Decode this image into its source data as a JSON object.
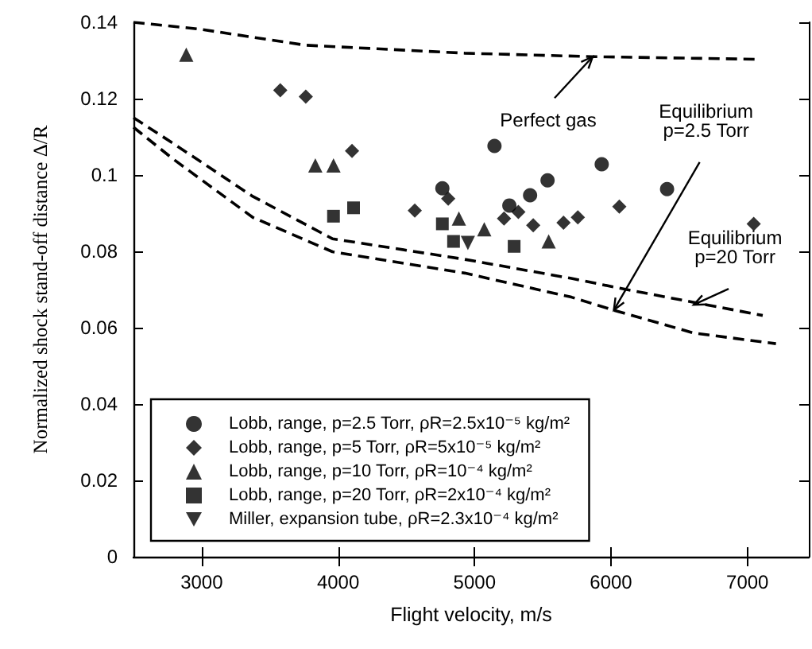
{
  "chart_data": {
    "type": "scatter",
    "xlabel": "Flight velocity, m/s",
    "ylabel": "Normalized shock stand-off distance Δ/R",
    "xlim": [
      2500,
      7450
    ],
    "xticks": [
      3000,
      4000,
      5000,
      6000,
      7000
    ],
    "ylim": [
      0,
      0.14
    ],
    "yticks": [
      0,
      0.02,
      0.04,
      0.06,
      0.08,
      0.1,
      0.12,
      0.14
    ],
    "grid": false,
    "legend": "bottom left",
    "series": [
      {
        "name": "Lobb, range, p=2.5 Torr, ρR=2.5x10⁻⁵ kg/m²",
        "color": "#000000",
        "marker": "circle",
        "x": [
          5146,
          4764,
          5255,
          5407,
          5535,
          5932,
          6411
        ],
        "values": [
          0.1076,
          0.0965,
          0.092,
          0.0947,
          0.0986,
          0.1028,
          0.0963
        ]
      },
      {
        "name": "Lobb, range, p=5 Torr, ρR=5x10⁻⁵ kg/m²",
        "color": "#000000",
        "marker": "diamond",
        "x": [
          3576,
          3763,
          4102,
          4562,
          4807,
          5216,
          5321,
          5430,
          5652,
          5757,
          6061,
          7046
        ],
        "values": [
          0.1222,
          0.1205,
          0.1063,
          0.0907,
          0.0938,
          0.0886,
          0.0903,
          0.0868,
          0.0875,
          0.0889,
          0.0917,
          0.0872
        ]
      },
      {
        "name": "Lobb, range, p=10 Torr, ρR=10⁻⁴ kg/m²",
        "color": "#000000",
        "marker": "triangle",
        "x": [
          2887,
          3833,
          3966,
          4885,
          5071,
          5543
        ],
        "values": [
          0.1315,
          0.1025,
          0.1025,
          0.0886,
          0.0858,
          0.0826
        ]
      },
      {
        "name": "Lobb, range, p=20 Torr, ρR=2x10⁻⁴ kg/m²",
        "color": "#000000",
        "marker": "square",
        "x": [
          3966,
          4113,
          4764,
          4846,
          5290
        ],
        "values": [
          0.0892,
          0.0914,
          0.0872,
          0.0826,
          0.0813
        ]
      },
      {
        "name": "Miller, expansion tube, ρR=2.3x10⁻⁴ kg/m²",
        "color": "#000000",
        "marker": "triangle-down",
        "x": [
          4951
        ],
        "values": [
          0.0822
        ]
      },
      {
        "type": "line",
        "color": "#000000",
        "line_style": "dashed",
        "marker": "none",
        "x": [
          2500,
          2985,
          3760,
          4928,
          5862,
          7088
        ],
        "values": [
          0.14,
          0.1382,
          0.134,
          0.1319,
          0.131,
          0.1303
        ]
      },
      {
        "type": "line",
        "color": "#000000",
        "line_style": "dashed",
        "marker": "none",
        "x": [
          2500,
          2790,
          3374,
          3958,
          4928,
          5710,
          6099,
          7112
        ],
        "values": [
          0.115,
          0.1083,
          0.0944,
          0.0833,
          0.0779,
          0.0729,
          0.0701,
          0.0632
        ]
      },
      {
        "type": "line",
        "color": "#000000",
        "line_style": "dashed",
        "marker": "none",
        "x": [
          2500,
          2790,
          3374,
          3958,
          4928,
          5710,
          6019,
          6606,
          7209
        ],
        "values": [
          0.1125,
          0.1042,
          0.0889,
          0.0799,
          0.0743,
          0.068,
          0.0646,
          0.0586,
          0.0558
        ]
      }
    ],
    "annotations": [
      {
        "text": "Perfect gas",
        "x": 5866,
        "y": 0.131
      },
      {
        "text": "Equilibrium\np=2.5 Torr",
        "x": 6021,
        "y": 0.0646
      },
      {
        "text": "Equilibrium\np=20 Torr",
        "x": 6606,
        "y": 0.066
      }
    ]
  }
}
